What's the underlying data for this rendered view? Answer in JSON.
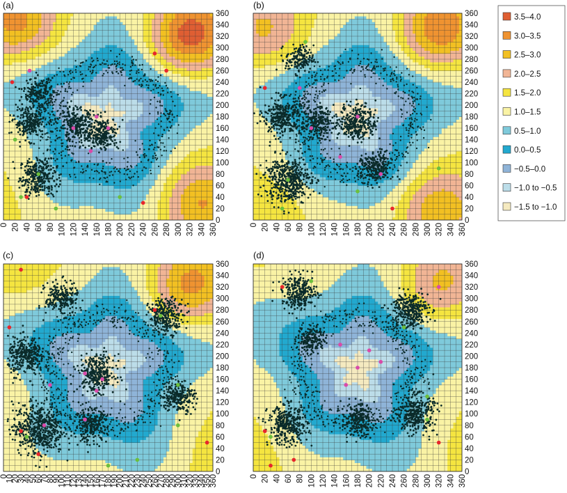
{
  "chart_data": [
    {
      "type": "heatmap",
      "panel_label": "(a)",
      "xlim": [
        0,
        360
      ],
      "ylim": [
        0,
        360
      ],
      "x_ticks": [
        "0",
        "20",
        "40",
        "60",
        "80",
        "100",
        "120",
        "140",
        "160",
        "180",
        "200",
        "220",
        "240",
        "260",
        "280",
        "300",
        "320",
        "340",
        "360"
      ],
      "y_ticks": [
        "0",
        "20",
        "40",
        "60",
        "80",
        "100",
        "120",
        "140",
        "160",
        "180",
        "200",
        "220",
        "240",
        "260",
        "280",
        "300",
        "320",
        "340",
        "360"
      ],
      "grid": true,
      "hot_regions": [
        [
          320,
          320,
          3.8
        ],
        [
          330,
          30,
          3.0
        ],
        [
          20,
          340,
          3.1
        ],
        [
          0,
          30,
          1.6
        ]
      ],
      "core_region": [
        150,
        165,
        -1.4
      ],
      "clusters": [
        [
          60,
          75,
          8
        ],
        [
          45,
          170,
          6
        ],
        [
          125,
          165,
          7
        ],
        [
          170,
          150,
          6
        ],
        [
          60,
          220,
          5
        ]
      ],
      "pink_points": [
        [
          120,
          160
        ],
        [
          160,
          180
        ],
        [
          150,
          120
        ],
        [
          180,
          160
        ],
        [
          45,
          260
        ]
      ],
      "red_points": [
        [
          15,
          240
        ],
        [
          260,
          290
        ],
        [
          280,
          260
        ],
        [
          240,
          30
        ],
        [
          40,
          40
        ]
      ],
      "green_points": [
        [
          30,
          40
        ],
        [
          20,
          140
        ],
        [
          60,
          80
        ],
        [
          90,
          20
        ],
        [
          200,
          40
        ]
      ]
    },
    {
      "type": "heatmap",
      "panel_label": "(b)",
      "xlim": [
        0,
        360
      ],
      "ylim": [
        0,
        360
      ],
      "x_ticks": [
        "0",
        "20",
        "40",
        "60",
        "80",
        "100",
        "120",
        "140",
        "160",
        "180",
        "200",
        "220",
        "240",
        "260",
        "280",
        "300",
        "320",
        "340",
        "360"
      ],
      "y_ticks": [
        "0",
        "20",
        "40",
        "60",
        "80",
        "100",
        "120",
        "140",
        "160",
        "180",
        "200",
        "220",
        "240",
        "260",
        "280",
        "300",
        "320",
        "340",
        "360"
      ],
      "grid": true,
      "hot_regions": [
        [
          320,
          330,
          3.4
        ],
        [
          310,
          20,
          3.0
        ],
        [
          20,
          320,
          2.6
        ],
        [
          40,
          20,
          2.0
        ]
      ],
      "core_region": [
        170,
        180,
        -1.3
      ],
      "clusters": [
        [
          60,
          70,
          12
        ],
        [
          50,
          180,
          8
        ],
        [
          110,
          170,
          6
        ],
        [
          180,
          170,
          8
        ],
        [
          210,
          90,
          6
        ],
        [
          80,
          280,
          4
        ]
      ],
      "pink_points": [
        [
          100,
          160
        ],
        [
          180,
          180
        ],
        [
          150,
          110
        ],
        [
          220,
          80
        ],
        [
          80,
          230
        ]
      ],
      "red_points": [
        [
          20,
          230
        ],
        [
          240,
          20
        ]
      ],
      "green_points": [
        [
          60,
          70
        ],
        [
          90,
          310
        ],
        [
          180,
          50
        ],
        [
          320,
          90
        ],
        [
          50,
          20
        ]
      ]
    },
    {
      "type": "heatmap",
      "panel_label": "(c)",
      "xlim": [
        0,
        360
      ],
      "ylim": [
        0,
        360
      ],
      "x_ticks": [
        "0",
        "10",
        "20",
        "30",
        "40",
        "50",
        "60",
        "70",
        "80",
        "90",
        "100",
        "110",
        "120",
        "130",
        "140",
        "150",
        "160",
        "170",
        "180",
        "190",
        "200",
        "210",
        "220",
        "230",
        "240",
        "250",
        "260",
        "270",
        "280",
        "290",
        "300",
        "310",
        "320",
        "330",
        "340",
        "350",
        "360"
      ],
      "y_ticks": [
        "0",
        "20",
        "40",
        "60",
        "80",
        "100",
        "120",
        "140",
        "160",
        "180",
        "200",
        "220",
        "240",
        "260",
        "280",
        "300",
        "320",
        "340",
        "360"
      ],
      "grid": true,
      "hot_regions": [
        [
          320,
          320,
          3.2
        ],
        [
          20,
          340,
          1.8
        ],
        [
          340,
          20,
          1.6
        ]
      ],
      "core_region": [
        160,
        170,
        -1.2
      ],
      "clusters": [
        [
          60,
          75,
          14
        ],
        [
          40,
          200,
          8
        ],
        [
          160,
          170,
          8
        ],
        [
          100,
          300,
          6
        ],
        [
          280,
          270,
          7
        ],
        [
          300,
          130,
          6
        ],
        [
          150,
          80,
          6
        ]
      ],
      "pink_points": [
        [
          80,
          150
        ],
        [
          140,
          170
        ],
        [
          170,
          160
        ],
        [
          160,
          140
        ],
        [
          140,
          90
        ],
        [
          70,
          80
        ]
      ],
      "red_points": [
        [
          30,
          350
        ],
        [
          10,
          250
        ],
        [
          30,
          70
        ],
        [
          60,
          30
        ],
        [
          260,
          280
        ],
        [
          350,
          50
        ]
      ],
      "green_points": [
        [
          40,
          60
        ],
        [
          300,
          150
        ],
        [
          300,
          80
        ],
        [
          270,
          270
        ],
        [
          180,
          10
        ],
        [
          230,
          20
        ]
      ]
    },
    {
      "type": "heatmap",
      "panel_label": "(d)",
      "xlim": [
        0,
        360
      ],
      "ylim": [
        0,
        360
      ],
      "x_ticks": [
        "0",
        "20",
        "40",
        "60",
        "80",
        "100",
        "120",
        "140",
        "160",
        "180",
        "200",
        "220",
        "240",
        "260",
        "280",
        "300",
        "320",
        "340",
        "360"
      ],
      "y_ticks": [
        "0",
        "20",
        "40",
        "60",
        "80",
        "100",
        "120",
        "140",
        "160",
        "180",
        "200",
        "220",
        "240",
        "260",
        "280",
        "300",
        "320",
        "340",
        "360"
      ],
      "grid": true,
      "hot_regions": [
        [
          320,
          320,
          2.6
        ],
        [
          20,
          30,
          1.7
        ],
        [
          340,
          30,
          1.5
        ]
      ],
      "core_region": [
        180,
        170,
        -1.2
      ],
      "clusters": [
        [
          60,
          80,
          9
        ],
        [
          80,
          310,
          7
        ],
        [
          270,
          280,
          8
        ],
        [
          280,
          100,
          8
        ],
        [
          180,
          90,
          6
        ],
        [
          100,
          230,
          4
        ]
      ],
      "pink_points": [
        [
          150,
          220
        ],
        [
          200,
          210
        ],
        [
          220,
          190
        ],
        [
          180,
          180
        ],
        [
          160,
          150
        ],
        [
          320,
          320
        ]
      ],
      "red_points": [
        [
          50,
          320
        ],
        [
          20,
          70
        ],
        [
          70,
          20
        ],
        [
          30,
          10
        ],
        [
          320,
          50
        ]
      ],
      "green_points": [
        [
          300,
          130
        ],
        [
          300,
          90
        ],
        [
          260,
          250
        ],
        [
          100,
          330
        ],
        [
          30,
          60
        ]
      ]
    }
  ],
  "legend": {
    "items": [
      {
        "label": "3.5–4.0",
        "color": "#df5f33"
      },
      {
        "label": "3.0–3.5",
        "color": "#ef9331"
      },
      {
        "label": "2.5–3.0",
        "color": "#f2c022"
      },
      {
        "label": "2.0–2.5",
        "color": "#f1b595"
      },
      {
        "label": "1.5–2.0",
        "color": "#f5e540"
      },
      {
        "label": "1.0–1.5",
        "color": "#faf3a5"
      },
      {
        "label": "0.5–1.0",
        "color": "#7fcadb"
      },
      {
        "label": "0.0–0.5",
        "color": "#22a9cf"
      },
      {
        "label": "−0.5–0.0",
        "color": "#8fb4d8"
      },
      {
        "label": "−1.0 to −0.5",
        "color": "#bcdde9"
      },
      {
        "label": "−1.5 to −1.0",
        "color": "#f5eac0"
      }
    ]
  },
  "colors": {
    "point_dark": "#0b2b2a",
    "point_pink": "#d94aa9",
    "point_red": "#e8262b",
    "point_green": "#6cbf3c",
    "grid_line": "#3a3a3a"
  }
}
